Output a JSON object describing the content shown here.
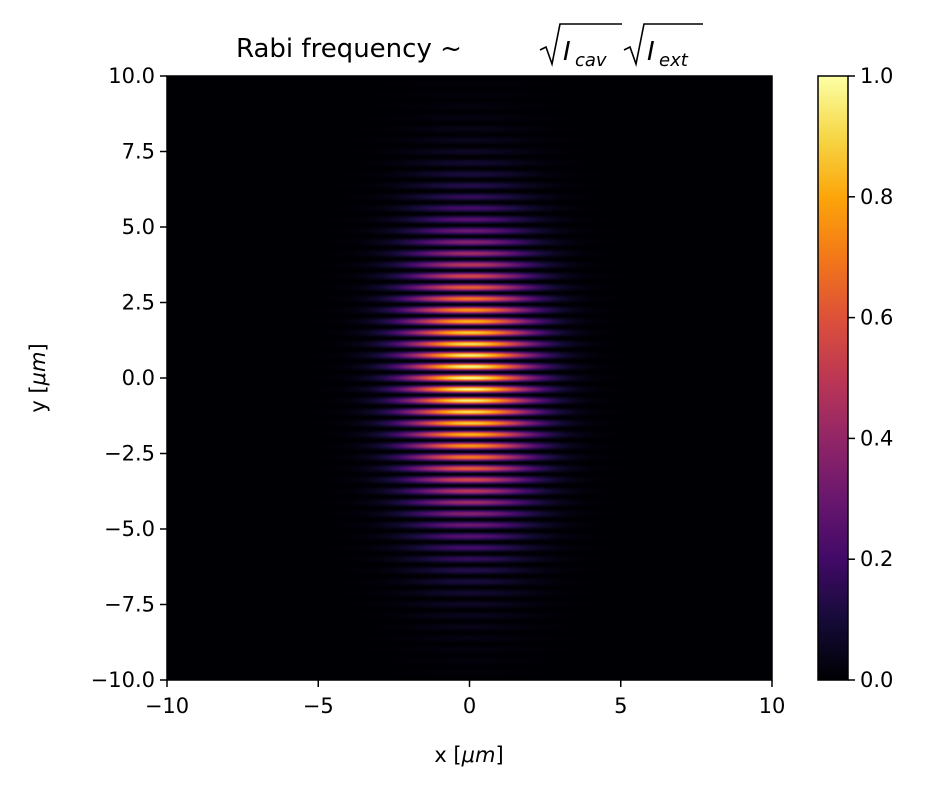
{
  "chart_data": {
    "type": "heatmap",
    "title": {
      "prefix": "Rabi frequency ~",
      "term1_base": "I",
      "term1_sub": "cav",
      "term2_base": "I",
      "term2_sub": "ext"
    },
    "xlabel": {
      "text": "x [",
      "italic": "μm",
      "close": "]"
    },
    "ylabel": {
      "text": "y [",
      "italic": "μm",
      "close": "]"
    },
    "xlim": [
      -10,
      10
    ],
    "ylim": [
      -10,
      10
    ],
    "xticks": [
      {
        "value": -10,
        "label": "−10"
      },
      {
        "value": -5,
        "label": "−5"
      },
      {
        "value": 0,
        "label": "0"
      },
      {
        "value": 5,
        "label": "5"
      },
      {
        "value": 10,
        "label": "10"
      }
    ],
    "yticks": [
      {
        "value": 10,
        "label": "10.0"
      },
      {
        "value": 7.5,
        "label": "7.5"
      },
      {
        "value": 5,
        "label": "5.0"
      },
      {
        "value": 2.5,
        "label": "2.5"
      },
      {
        "value": 0,
        "label": "0.0"
      },
      {
        "value": -2.5,
        "label": "−2.5"
      },
      {
        "value": -5,
        "label": "−5.0"
      },
      {
        "value": -7.5,
        "label": "−7.5"
      },
      {
        "value": -10,
        "label": "−10.0"
      }
    ],
    "colorbar": {
      "colormap": "inferno",
      "range": [
        0,
        1
      ],
      "ticks": [
        {
          "value": 1.0,
          "label": "1.0"
        },
        {
          "value": 0.8,
          "label": "0.8"
        },
        {
          "value": 0.6,
          "label": "0.6"
        },
        {
          "value": 0.4,
          "label": "0.4"
        },
        {
          "value": 0.2,
          "label": "0.2"
        },
        {
          "value": 0.0,
          "label": "0.0"
        }
      ]
    },
    "field": {
      "description_free_params": true,
      "peak_value": 1.0,
      "fringe_period_y": 0.375,
      "fringe_phase_y": 0,
      "gaussian_sigma_x": 1.45,
      "gaussian_sigma_y": 3.2
    }
  }
}
